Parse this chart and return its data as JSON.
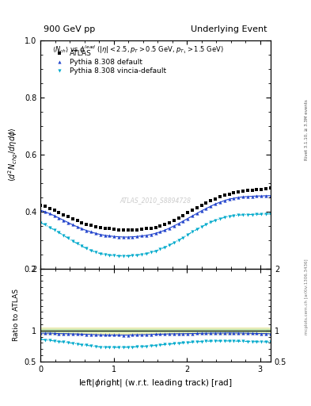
{
  "title_left": "900 GeV pp",
  "title_right": "Underlying Event",
  "ylabel_main": "$\\langle d^2 N_{chg}/d\\eta d\\phi \\rangle$",
  "ylabel_ratio": "Ratio to ATLAS",
  "xlabel": "left|$\\phi$right| (w.r.t. leading track) [rad]",
  "inner_title": "$\\langle N_{ch}\\rangle$ vs $\\phi^{lead}$ ($|\\eta| < 2.5, p_T > 0.5$ GeV, $p_{T_1} > 1.5$ GeV)",
  "watermark": "ATLAS_2010_S8894728",
  "rivet_label": "Rivet 3.1.10, ≥ 3.3M events",
  "mcplots_label": "mcplots.cern.ch [arXiv:1306.3436]",
  "legend": [
    "ATLAS",
    "Pythia 8.308 default",
    "Pythia 8.308 vincia-default"
  ],
  "legend_colors": [
    "black",
    "#2244cc",
    "#00aacc"
  ],
  "xmin": 0,
  "xmax": 3.14159,
  "ymin_main": 0.2,
  "ymax_main": 1.0,
  "ymin_ratio": 0.5,
  "ymax_ratio": 2.0,
  "yticks_main": [
    0.2,
    0.4,
    0.6,
    0.8,
    1.0
  ],
  "yticks_ratio": [
    0.5,
    1.0,
    2.0
  ],
  "xticks": [
    0,
    1,
    2,
    3
  ],
  "atlas_x": [
    0.0,
    0.0628,
    0.1257,
    0.1885,
    0.2513,
    0.3142,
    0.377,
    0.4398,
    0.5027,
    0.5655,
    0.6283,
    0.6912,
    0.754,
    0.8168,
    0.8796,
    0.9425,
    1.0053,
    1.0681,
    1.131,
    1.1938,
    1.2566,
    1.3194,
    1.3823,
    1.4451,
    1.5079,
    1.5708,
    1.6336,
    1.6964,
    1.7593,
    1.8221,
    1.8849,
    1.9477,
    2.0106,
    2.0734,
    2.1362,
    2.1991,
    2.2619,
    2.3247,
    2.3876,
    2.4504,
    2.5132,
    2.576,
    2.6389,
    2.7017,
    2.7645,
    2.8274,
    2.8902,
    2.953,
    3.0159,
    3.0787,
    3.1416
  ],
  "atlas_y": [
    0.423,
    0.418,
    0.41,
    0.405,
    0.398,
    0.39,
    0.382,
    0.375,
    0.368,
    0.362,
    0.356,
    0.352,
    0.348,
    0.345,
    0.342,
    0.34,
    0.338,
    0.337,
    0.336,
    0.336,
    0.336,
    0.337,
    0.338,
    0.34,
    0.342,
    0.345,
    0.35,
    0.356,
    0.362,
    0.37,
    0.378,
    0.387,
    0.396,
    0.405,
    0.414,
    0.422,
    0.43,
    0.438,
    0.445,
    0.452,
    0.458,
    0.462,
    0.466,
    0.469,
    0.472,
    0.474,
    0.476,
    0.478,
    0.479,
    0.48,
    0.482
  ],
  "pythia_default_x": [
    0.0,
    0.0628,
    0.1257,
    0.1885,
    0.2513,
    0.3142,
    0.377,
    0.4398,
    0.5027,
    0.5655,
    0.6283,
    0.6912,
    0.754,
    0.8168,
    0.8796,
    0.9425,
    1.0053,
    1.0681,
    1.131,
    1.1938,
    1.2566,
    1.3194,
    1.3823,
    1.4451,
    1.5079,
    1.5708,
    1.6336,
    1.6964,
    1.7593,
    1.8221,
    1.8849,
    1.9477,
    2.0106,
    2.0734,
    2.1362,
    2.1991,
    2.2619,
    2.3247,
    2.3876,
    2.4504,
    2.5132,
    2.576,
    2.6389,
    2.7017,
    2.7645,
    2.8274,
    2.8902,
    2.953,
    3.0159,
    3.0787,
    3.1416
  ],
  "pythia_default_y": [
    0.405,
    0.4,
    0.393,
    0.386,
    0.378,
    0.37,
    0.362,
    0.354,
    0.347,
    0.34,
    0.334,
    0.329,
    0.324,
    0.32,
    0.317,
    0.315,
    0.313,
    0.312,
    0.311,
    0.311,
    0.312,
    0.313,
    0.315,
    0.317,
    0.32,
    0.324,
    0.329,
    0.335,
    0.342,
    0.35,
    0.358,
    0.367,
    0.376,
    0.385,
    0.394,
    0.403,
    0.411,
    0.419,
    0.427,
    0.433,
    0.439,
    0.444,
    0.447,
    0.45,
    0.452,
    0.453,
    0.454,
    0.455,
    0.455,
    0.456,
    0.456
  ],
  "pythia_vincia_x": [
    0.0,
    0.0628,
    0.1257,
    0.1885,
    0.2513,
    0.3142,
    0.377,
    0.4398,
    0.5027,
    0.5655,
    0.6283,
    0.6912,
    0.754,
    0.8168,
    0.8796,
    0.9425,
    1.0053,
    1.0681,
    1.131,
    1.1938,
    1.2566,
    1.3194,
    1.3823,
    1.4451,
    1.5079,
    1.5708,
    1.6336,
    1.6964,
    1.7593,
    1.8221,
    1.8849,
    1.9477,
    2.0106,
    2.0734,
    2.1362,
    2.1991,
    2.2619,
    2.3247,
    2.3876,
    2.4504,
    2.5132,
    2.576,
    2.6389,
    2.7017,
    2.7645,
    2.8274,
    2.8902,
    2.953,
    3.0159,
    3.0787,
    3.1416
  ],
  "pythia_vincia_y": [
    0.362,
    0.354,
    0.345,
    0.336,
    0.327,
    0.317,
    0.307,
    0.297,
    0.288,
    0.279,
    0.271,
    0.264,
    0.258,
    0.253,
    0.25,
    0.248,
    0.246,
    0.245,
    0.245,
    0.245,
    0.246,
    0.248,
    0.25,
    0.253,
    0.257,
    0.262,
    0.268,
    0.275,
    0.282,
    0.291,
    0.3,
    0.309,
    0.319,
    0.329,
    0.338,
    0.347,
    0.355,
    0.363,
    0.37,
    0.375,
    0.38,
    0.384,
    0.386,
    0.388,
    0.389,
    0.39,
    0.39,
    0.391,
    0.391,
    0.392,
    0.392
  ],
  "ratio_band_low": 0.95,
  "ratio_band_high": 1.05,
  "ratio_band_color": "#eeeebb",
  "ratio_green_low": 0.98,
  "ratio_green_high": 1.02,
  "ratio_green_color": "#bbddaa",
  "ratio_line": 1.0,
  "ratio_pythia_default": [
    0.957,
    0.957,
    0.958,
    0.954,
    0.95,
    0.949,
    0.948,
    0.944,
    0.943,
    0.939,
    0.938,
    0.935,
    0.931,
    0.928,
    0.927,
    0.926,
    0.926,
    0.926,
    0.925,
    0.925,
    0.929,
    0.93,
    0.931,
    0.932,
    0.936,
    0.939,
    0.94,
    0.941,
    0.945,
    0.946,
    0.947,
    0.948,
    0.949,
    0.951,
    0.952,
    0.955,
    0.956,
    0.957,
    0.959,
    0.958,
    0.959,
    0.961,
    0.959,
    0.96,
    0.958,
    0.956,
    0.954,
    0.952,
    0.95,
    0.95,
    0.945
  ],
  "ratio_pythia_vincia": [
    0.856,
    0.847,
    0.841,
    0.83,
    0.821,
    0.813,
    0.804,
    0.792,
    0.783,
    0.771,
    0.761,
    0.75,
    0.741,
    0.733,
    0.731,
    0.729,
    0.728,
    0.727,
    0.729,
    0.729,
    0.732,
    0.736,
    0.74,
    0.744,
    0.751,
    0.759,
    0.766,
    0.773,
    0.779,
    0.786,
    0.794,
    0.799,
    0.806,
    0.812,
    0.817,
    0.822,
    0.826,
    0.829,
    0.831,
    0.831,
    0.83,
    0.831,
    0.828,
    0.827,
    0.824,
    0.823,
    0.82,
    0.819,
    0.816,
    0.817,
    0.813
  ]
}
